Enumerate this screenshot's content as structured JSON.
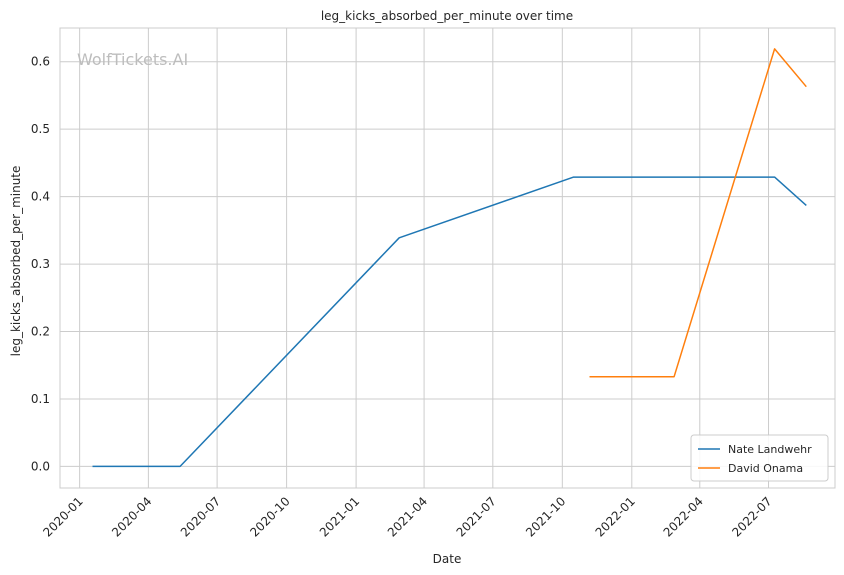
{
  "chart_data": {
    "type": "line",
    "title": "leg_kicks_absorbed_per_minute over time",
    "xlabel": "Date",
    "ylabel": "leg_kicks_absorbed_per_minute",
    "watermark": "WolfTickets.AI",
    "x_ticks": [
      "2020-01",
      "2020-04",
      "2020-07",
      "2020-10",
      "2021-01",
      "2021-04",
      "2021-07",
      "2021-10",
      "2022-01",
      "2022-04",
      "2022-07"
    ],
    "y_ticks": [
      "0.0",
      "0.1",
      "0.2",
      "0.3",
      "0.4",
      "0.5",
      "0.6"
    ],
    "xlim": [
      "2019-12-06",
      "2022-09-27"
    ],
    "ylim": [
      -0.032,
      0.65
    ],
    "grid": true,
    "legend_position": "bottom-right",
    "series": [
      {
        "name": "Nate Landwehr",
        "color": "#1f77b4",
        "points": [
          {
            "date": "2020-01-18",
            "value": 0.0
          },
          {
            "date": "2020-05-13",
            "value": 0.0
          },
          {
            "date": "2021-02-27",
            "value": 0.339
          },
          {
            "date": "2021-10-16",
            "value": 0.429
          },
          {
            "date": "2022-07-09",
            "value": 0.429
          },
          {
            "date": "2022-08-20",
            "value": 0.387
          }
        ]
      },
      {
        "name": "David Onama",
        "color": "#ff7f0e",
        "points": [
          {
            "date": "2021-11-06",
            "value": 0.133
          },
          {
            "date": "2022-02-26",
            "value": 0.133
          },
          {
            "date": "2022-07-09",
            "value": 0.619
          },
          {
            "date": "2022-08-20",
            "value": 0.563
          }
        ]
      }
    ]
  }
}
